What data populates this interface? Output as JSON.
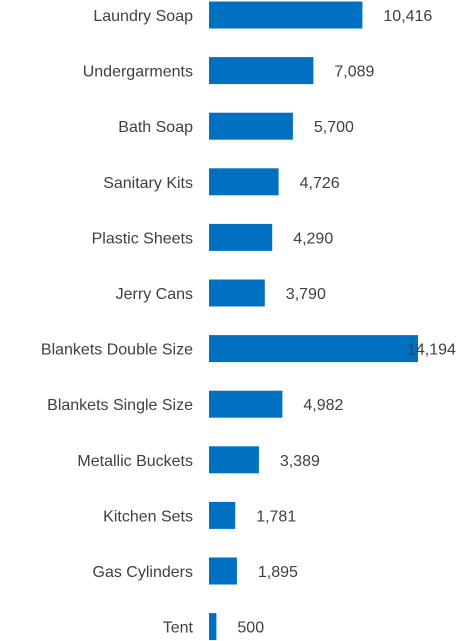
{
  "chart_data": {
    "type": "bar",
    "orientation": "horizontal",
    "categories": [
      "Laundry Soap",
      "Undergarments",
      "Bath Soap",
      "Sanitary Kits",
      "Plastic Sheets",
      "Jerry Cans",
      "Blankets Double Size",
      "Blankets Single Size",
      "Metallic Buckets",
      "Kitchen Sets",
      "Gas Cylinders",
      "Tent"
    ],
    "values": [
      10416,
      7089,
      5700,
      4726,
      4290,
      3790,
      14194,
      4982,
      3389,
      1781,
      1895,
      500
    ],
    "value_labels": [
      "10,416",
      "7,089",
      "5,700",
      "4,726",
      "4,290",
      "3,790",
      "14,194",
      "4,982",
      "3,389",
      "1,781",
      "1,895",
      "500"
    ],
    "title": "",
    "xlabel": "",
    "ylabel": "",
    "xlim": [
      0,
      14194
    ],
    "grid": false,
    "legend": "none",
    "colors": {
      "bar": "#0070C0",
      "text": "#404040"
    }
  }
}
